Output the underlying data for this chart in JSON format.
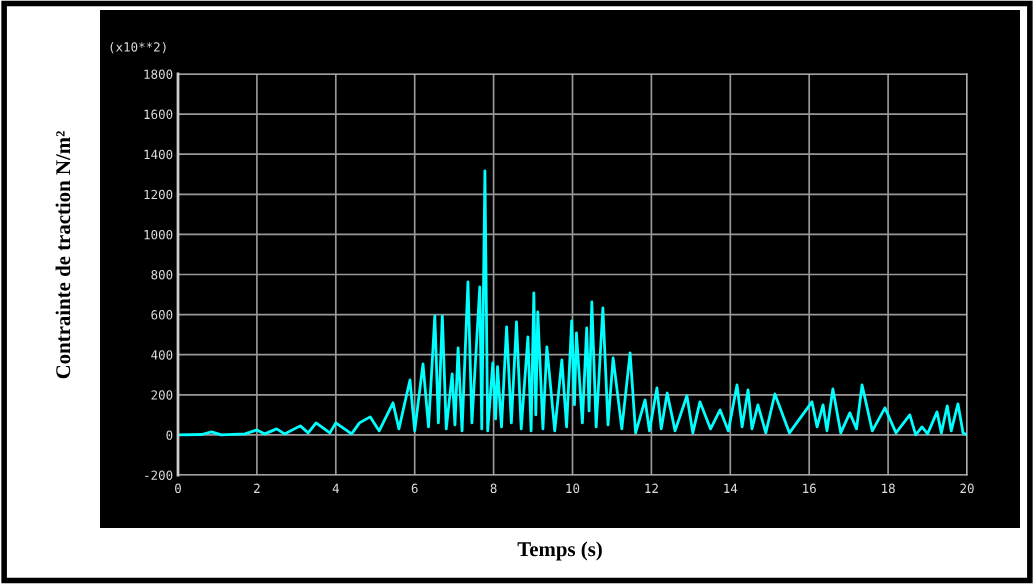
{
  "chart_data": {
    "type": "line",
    "xlabel": "Temps (s)",
    "ylabel": "Contrainte de traction N/m²",
    "annotations": [
      "(x10**2)"
    ],
    "xlim": [
      0,
      20
    ],
    "xticks": [
      0,
      2,
      4,
      6,
      8,
      10,
      12,
      14,
      16,
      18,
      20
    ],
    "ylim": [
      -200,
      1800
    ],
    "yticks": [
      -200,
      0,
      200,
      400,
      600,
      800,
      1000,
      1200,
      1400,
      1600,
      1800
    ],
    "grid": true,
    "legend": false,
    "marker": "none",
    "line_style": "solid",
    "series": [
      {
        "color": "#00ffff",
        "x": [
          0,
          0.6,
          0.85,
          1.1,
          1.7,
          2.0,
          2.2,
          2.5,
          2.7,
          3.1,
          3.3,
          3.5,
          3.85,
          4.0,
          4.4,
          4.6,
          4.87,
          5.1,
          5.45,
          5.6,
          5.88,
          6.0,
          6.21,
          6.35,
          6.51,
          6.6,
          6.7,
          6.8,
          6.95,
          7.02,
          7.1,
          7.2,
          7.35,
          7.45,
          7.65,
          7.7,
          7.78,
          7.85,
          7.98,
          8.05,
          8.1,
          8.2,
          8.33,
          8.45,
          8.58,
          8.7,
          8.87,
          8.95,
          9.02,
          9.07,
          9.12,
          9.25,
          9.35,
          9.55,
          9.73,
          9.85,
          9.98,
          10.05,
          10.1,
          10.25,
          10.36,
          10.42,
          10.49,
          10.6,
          10.77,
          10.9,
          11.03,
          11.25,
          11.46,
          11.6,
          11.84,
          11.95,
          12.14,
          12.25,
          12.4,
          12.6,
          12.9,
          13.05,
          13.23,
          13.5,
          13.74,
          13.95,
          14.17,
          14.3,
          14.45,
          14.55,
          14.7,
          14.9,
          15.13,
          15.5,
          16.07,
          16.2,
          16.35,
          16.45,
          16.6,
          16.8,
          17.03,
          17.2,
          17.34,
          17.6,
          17.92,
          18.2,
          18.55,
          18.7,
          18.86,
          19.0,
          19.24,
          19.35,
          19.5,
          19.6,
          19.77,
          19.9,
          20
        ],
        "values": [
          0,
          2,
          15,
          0,
          5,
          25,
          5,
          30,
          5,
          45,
          10,
          60,
          10,
          60,
          5,
          60,
          90,
          20,
          160,
          30,
          274,
          20,
          354,
          40,
          594,
          60,
          594,
          30,
          304,
          50,
          434,
          20,
          763,
          60,
          738,
          30,
          1317,
          20,
          359,
          80,
          340,
          40,
          539,
          60,
          564,
          30,
          489,
          20,
          708,
          100,
          613,
          30,
          439,
          20,
          374,
          40,
          569,
          150,
          509,
          60,
          534,
          120,
          663,
          40,
          633,
          50,
          384,
          30,
          409,
          10,
          175,
          20,
          234,
          30,
          209,
          20,
          195,
          10,
          165,
          30,
          125,
          20,
          249,
          40,
          224,
          30,
          150,
          10,
          204,
          10,
          165,
          40,
          150,
          20,
          229,
          10,
          110,
          30,
          249,
          20,
          135,
          10,
          100,
          0,
          40,
          5,
          115,
          10,
          145,
          20,
          155,
          10,
          0
        ]
      }
    ]
  }
}
